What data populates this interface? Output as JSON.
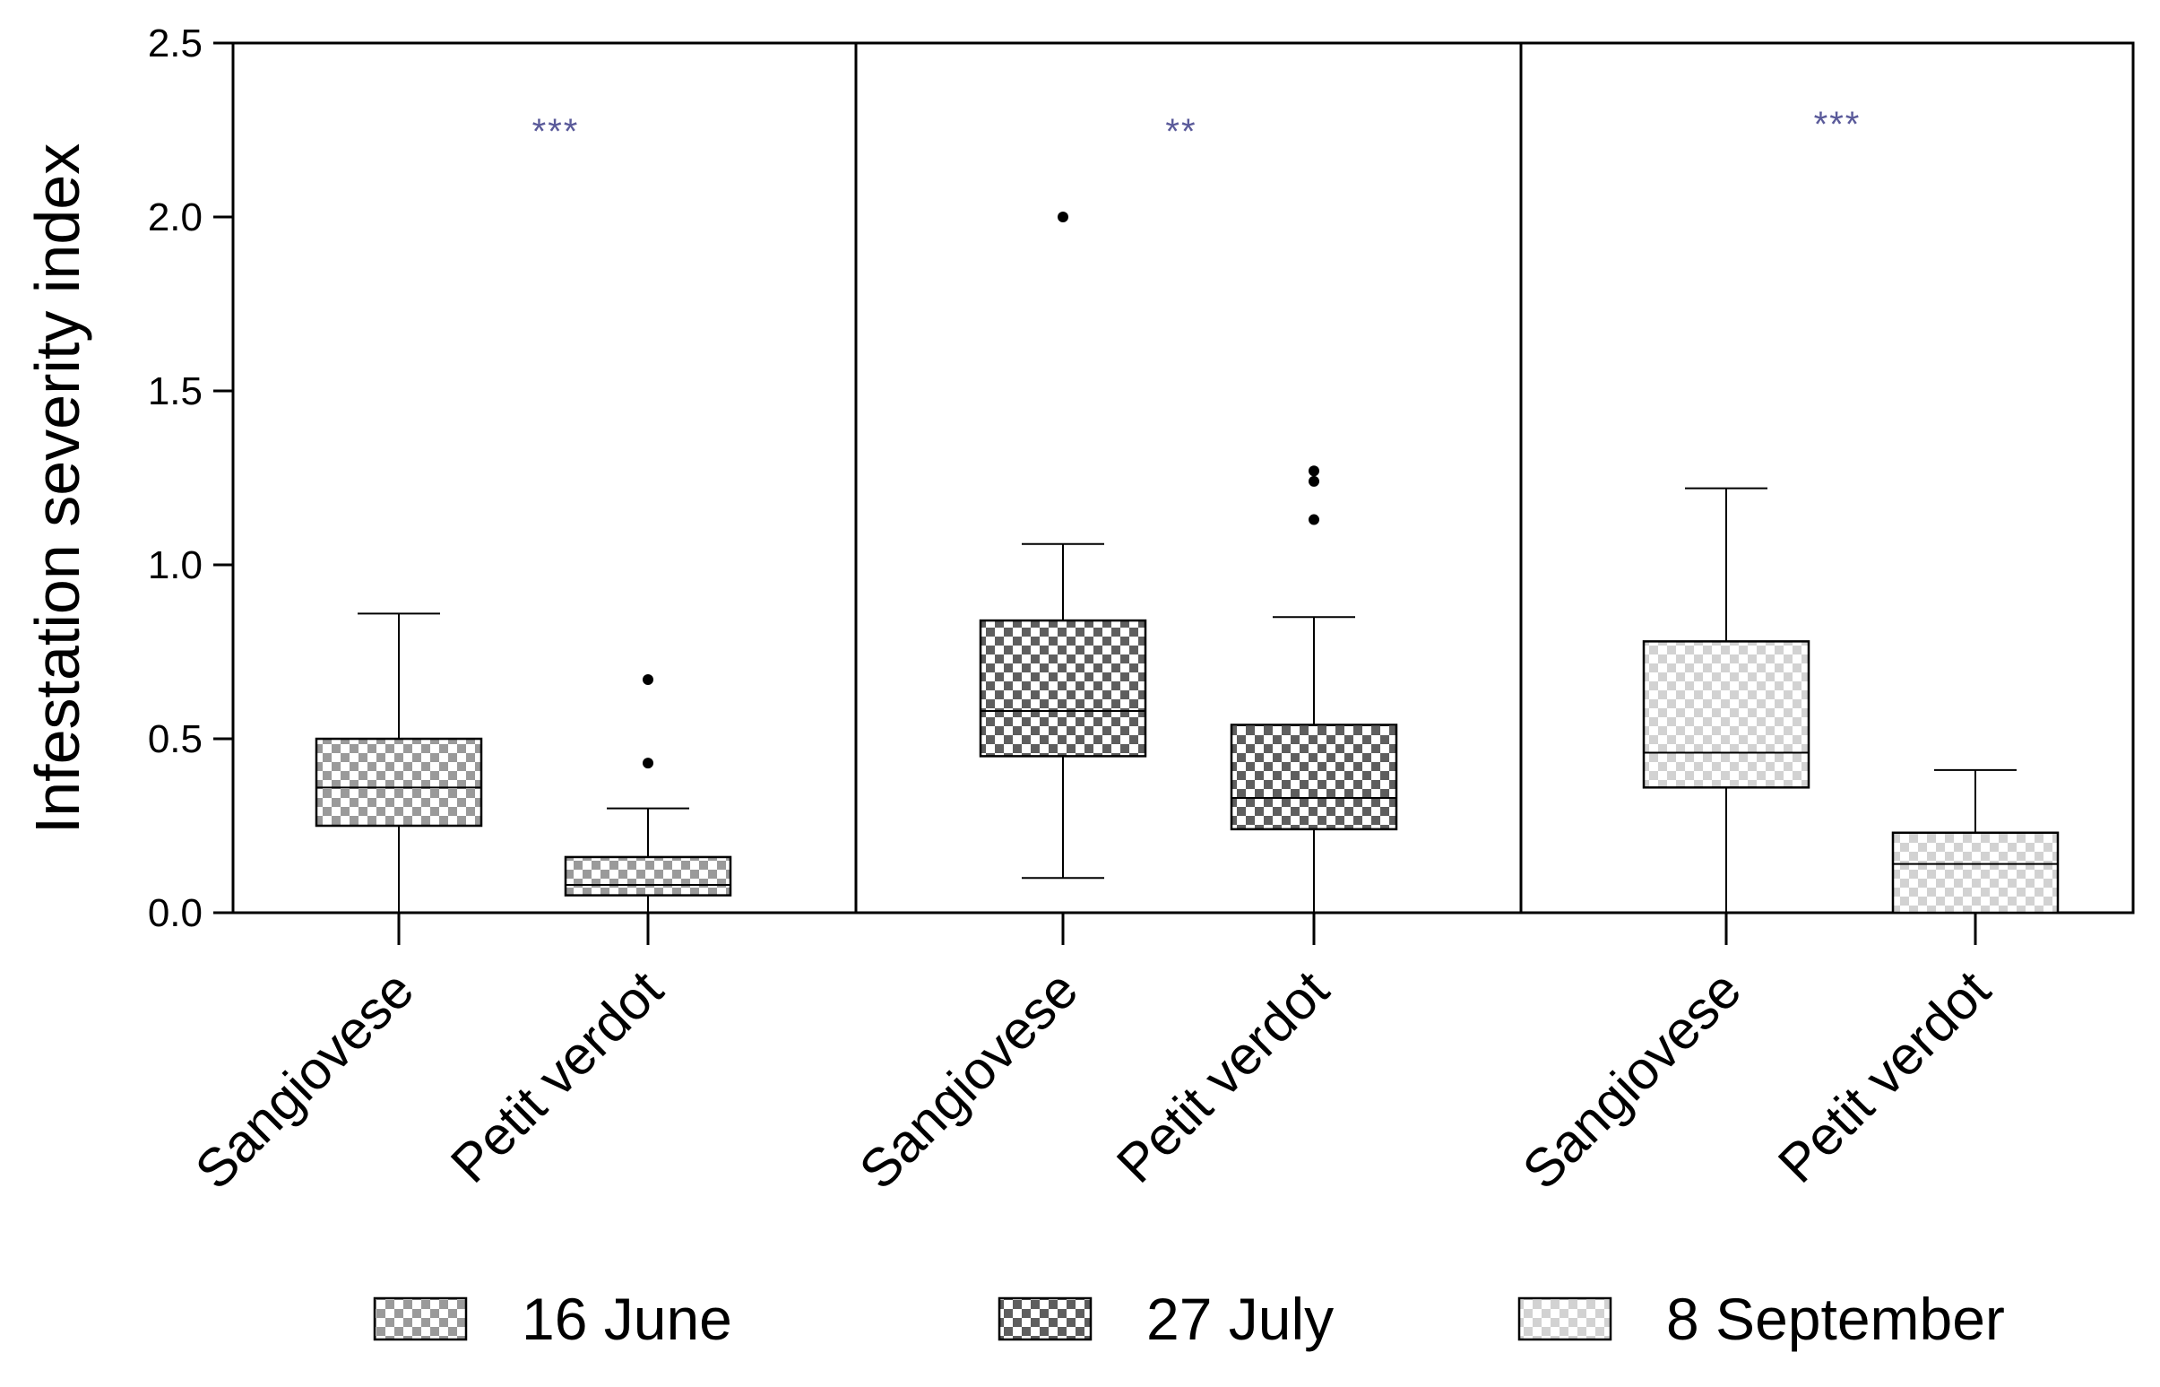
{
  "chart_data": {
    "type": "boxplot",
    "ylabel": "Infestation severity index",
    "ylim": [
      0,
      2.5
    ],
    "yticks": [
      0.0,
      0.5,
      1.0,
      1.5,
      2.0,
      2.5
    ],
    "ytick_labels": [
      "0.0",
      "0.5",
      "1.0",
      "1.5",
      "2.0",
      "2.5"
    ],
    "colors": {
      "june": "#9a9a9a",
      "july": "#666666",
      "september": "#c8c8c8",
      "significance": "#5a5a9a"
    },
    "legend": [
      {
        "name": "16 June",
        "pattern": "june"
      },
      {
        "name": "27 July",
        "pattern": "july"
      },
      {
        "name": "8 September",
        "pattern": "september"
      }
    ],
    "panels": [
      {
        "date": "16 June",
        "pattern": "june",
        "significance": "***",
        "boxes": [
          {
            "category": "Sangiovese",
            "whisker_low": 0.0,
            "q1": 0.25,
            "median": 0.36,
            "q3": 0.5,
            "whisker_high": 0.86,
            "outliers": []
          },
          {
            "category": "Petit verdot",
            "whisker_low": 0.0,
            "q1": 0.05,
            "median": 0.08,
            "q3": 0.16,
            "whisker_high": 0.3,
            "outliers": [
              0.43,
              0.67
            ]
          }
        ]
      },
      {
        "date": "27 July",
        "pattern": "july",
        "significance": "**",
        "boxes": [
          {
            "category": "Sangiovese",
            "whisker_low": 0.1,
            "q1": 0.45,
            "median": 0.58,
            "q3": 0.84,
            "whisker_high": 1.06,
            "outliers": [
              2.0
            ]
          },
          {
            "category": "Petit verdot",
            "whisker_low": 0.0,
            "q1": 0.24,
            "median": 0.33,
            "q3": 0.54,
            "whisker_high": 0.85,
            "outliers": [
              1.13,
              1.24,
              1.27
            ]
          }
        ]
      },
      {
        "date": "8 September",
        "pattern": "september",
        "significance": "***",
        "boxes": [
          {
            "category": "Sangiovese",
            "whisker_low": 0.0,
            "q1": 0.36,
            "median": 0.46,
            "q3": 0.78,
            "whisker_high": 1.22,
            "outliers": []
          },
          {
            "category": "Petit verdot",
            "whisker_low": 0.0,
            "q1": 0.0,
            "median": 0.14,
            "q3": 0.23,
            "whisker_high": 0.41,
            "outliers": []
          }
        ]
      }
    ]
  }
}
